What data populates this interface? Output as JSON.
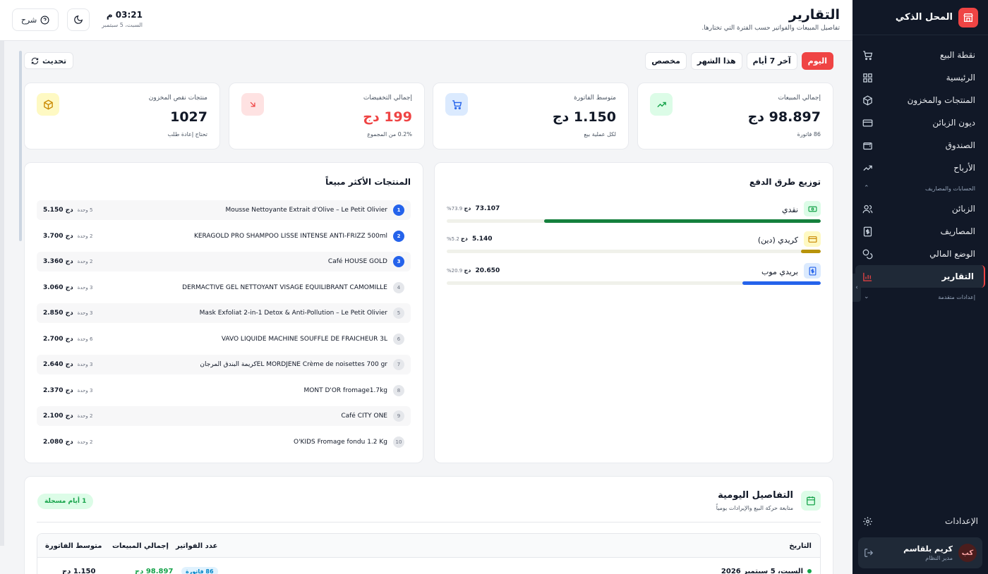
{
  "app": {
    "name": "المحل الذكي"
  },
  "colors": {
    "accent": "#ef4444",
    "sidebar_bg": "#111827",
    "success": "#16a34a",
    "info": "#2563eb",
    "warning": "#ca8a04"
  },
  "sidebar": {
    "items": [
      {
        "label": "نقطة البيع",
        "icon": "cart-icon"
      },
      {
        "label": "الرئيسية",
        "icon": "grid-icon"
      },
      {
        "label": "المنتجات والمخزون",
        "icon": "box-icon"
      },
      {
        "label": "ديون الزبائن",
        "icon": "card-icon"
      },
      {
        "label": "الصندوق",
        "icon": "wallet-icon"
      },
      {
        "label": "الأرباح",
        "icon": "trend-icon"
      }
    ],
    "section_accounts": "الحسابات والمصاريف",
    "accounts_items": [
      {
        "label": "الزبائن",
        "icon": "users-icon"
      },
      {
        "label": "المصاريف",
        "icon": "receipt-icon"
      },
      {
        "label": "الوضع المالي",
        "icon": "coins-icon"
      },
      {
        "label": "التقارير",
        "icon": "chart-icon",
        "active": true
      }
    ],
    "section_advanced": "إعدادات متقدمة",
    "settings_label": "الإعدادات",
    "user": {
      "initials": "كب",
      "name": "كريم بلقاسم",
      "role": "مدير النظام"
    }
  },
  "header": {
    "title": "التقارير",
    "subtitle": "تفاصيل المبيعات والفواتير حسب الفترة التي تختارها.",
    "time": "03:21 م",
    "date": "السبت، 5 سبتمبر",
    "explain_label": "شرح"
  },
  "filters": {
    "options": [
      "اليوم",
      "آخر 7 أيام",
      "هذا الشهر",
      "مخصص"
    ],
    "selected": "اليوم",
    "refresh_label": "تحديث"
  },
  "stats": [
    {
      "label": "إجمالي المبيعات",
      "value": "98.897 دج",
      "sub": "86 فاتورة",
      "icon": "trend-up-icon"
    },
    {
      "label": "متوسط الفاتورة",
      "value": "1.150 دج",
      "sub": "لكل عملية بيع",
      "icon": "cart-icon"
    },
    {
      "label": "إجمالي التخفيضات",
      "value": "199 دج",
      "sub": "0.2% من المجموع",
      "icon": "arrow-down-right-icon"
    },
    {
      "label": "منتجات نقص المخزون",
      "value": "1027",
      "sub": "تحتاج إعادة طلب",
      "icon": "box-icon"
    }
  ],
  "payments": {
    "title": "توزيع طرق الدفع",
    "currency": "دج",
    "methods": [
      {
        "name": "نقدي",
        "amount": "73.107",
        "percent": 73.9,
        "percent_label": "73.9%",
        "color": "#15803d",
        "icon": "cash-icon"
      },
      {
        "name": "كريدي (دين)",
        "amount": "5.140",
        "percent": 5.2,
        "percent_label": "5.2%",
        "color": "#b8930b",
        "icon": "credit-icon"
      },
      {
        "name": "بريدي موب",
        "amount": "20.650",
        "percent": 20.9,
        "percent_label": "20.9%",
        "color": "#2563eb",
        "icon": "dollar-icon"
      }
    ]
  },
  "top_products": {
    "title": "المنتجات الأكثر مبيعاً",
    "currency": "دج",
    "unit": "وحدة",
    "items": [
      {
        "rank": "1",
        "name": "Mousse Nettoyante Extrait d'Olive – Le Petit Olivier",
        "qty": "5",
        "total": "5.150"
      },
      {
        "rank": "2",
        "name": "KERAGOLD PRO SHAMPOO LISSE INTENSE ANTI-FRIZZ 500ml",
        "qty": "2",
        "total": "3.700"
      },
      {
        "rank": "3",
        "name": "Café HOUSE GOLD",
        "qty": "2",
        "total": "3.360"
      },
      {
        "rank": "4",
        "name": "DERMACTIVE GEL NETTOYANT VISAGE EQUILIBRANT CAMOMILLE",
        "qty": "3",
        "total": "3.060"
      },
      {
        "rank": "5",
        "name": "Mask Exfoliat 2-in-1 Detox & Anti-Pollution – Le Petit Olivier",
        "qty": "3",
        "total": "2.850"
      },
      {
        "rank": "6",
        "name": "VAVO LIQUIDE MACHINE SOUFFLE DE FRAICHEUR 3L",
        "qty": "6",
        "total": "2.700"
      },
      {
        "rank": "7",
        "name": "EL MORDJENE Crème de noisettes 700 grكريمة البندق المرجان",
        "qty": "3",
        "total": "2.640"
      },
      {
        "rank": "8",
        "name": "MONT D'OR fromage1.7kg",
        "qty": "3",
        "total": "2.370"
      },
      {
        "rank": "9",
        "name": "Café CITY ONE",
        "qty": "2",
        "total": "2.100"
      },
      {
        "rank": "10",
        "name": "O'KIDS Fromage fondu 1.2 Kg",
        "qty": "2",
        "total": "2.080"
      }
    ]
  },
  "daily": {
    "title": "التفاصيل اليومية",
    "subtitle": "متابعة حركة البيع والإيرادات يومياً",
    "badge": "1 أيام مسجلة",
    "columns": [
      "التاريخ",
      "عدد الفواتير",
      "إجمالي المبيعات",
      "متوسط الفاتورة"
    ],
    "rows": [
      {
        "date": "السبت، 5 سبتمبر 2026",
        "invoices": "86 فاتورة",
        "sales": "98.897 دج",
        "avg": "1.150 دج"
      }
    ]
  }
}
